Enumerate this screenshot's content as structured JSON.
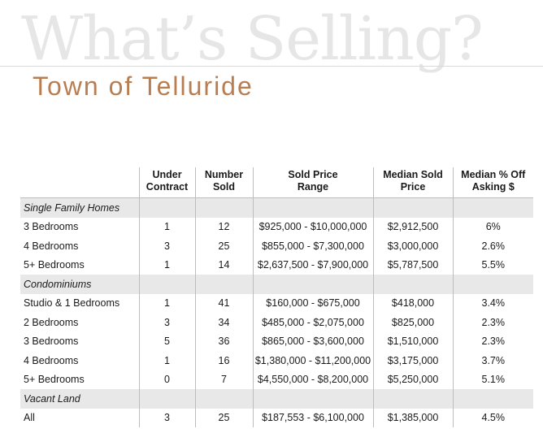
{
  "header": {
    "big_title": "What’s Selling?",
    "subtitle": "Town of Telluride"
  },
  "table": {
    "columns": [
      "",
      "Under\nContract",
      "Number\nSold",
      "Sold Price\nRange",
      "Median Sold\nPrice",
      "Median % Off\nAsking $"
    ],
    "rows": [
      {
        "section": true,
        "label": "Single Family Homes",
        "cells": [
          "",
          "",
          "",
          "",
          ""
        ]
      },
      {
        "section": false,
        "label": "3 Bedrooms",
        "cells": [
          "1",
          "12",
          "$925,000 - $10,000,000",
          "$2,912,500",
          "6%"
        ]
      },
      {
        "section": false,
        "label": "4 Bedrooms",
        "cells": [
          "3",
          "25",
          "$855,000 - $7,300,000",
          "$3,000,000",
          "2.6%"
        ]
      },
      {
        "section": false,
        "label": "5+ Bedrooms",
        "cells": [
          "1",
          "14",
          "$2,637,500 - $7,900,000",
          "$5,787,500",
          "5.5%"
        ]
      },
      {
        "section": true,
        "label": "Condominiums",
        "cells": [
          "",
          "",
          "",
          "",
          ""
        ]
      },
      {
        "section": false,
        "label": "Studio & 1 Bedrooms",
        "cells": [
          "1",
          "41",
          "$160,000 - $675,000",
          "$418,000",
          "3.4%"
        ]
      },
      {
        "section": false,
        "label": "2 Bedrooms",
        "cells": [
          "3",
          "34",
          "$485,000 - $2,075,000",
          "$825,000",
          "2.3%"
        ]
      },
      {
        "section": false,
        "label": "3 Bedrooms",
        "cells": [
          "5",
          "36",
          "$865,000 - $3,600,000",
          "$1,510,000",
          "2.3%"
        ]
      },
      {
        "section": false,
        "label": "4 Bedrooms",
        "cells": [
          "1",
          "16",
          "$1,380,000 - $11,200,000",
          "$3,175,000",
          "3.7%"
        ]
      },
      {
        "section": false,
        "label": "5+ Bedrooms",
        "cells": [
          "0",
          "7",
          "$4,550,000 - $8,200,000",
          "$5,250,000",
          "5.1%"
        ]
      },
      {
        "section": true,
        "label": "Vacant Land",
        "cells": [
          "",
          "",
          "",
          "",
          ""
        ]
      },
      {
        "section": false,
        "label": "All",
        "cells": [
          "3",
          "25",
          "$187,553 - $6,100,000",
          "$1,385,000",
          "4.5%"
        ]
      }
    ]
  }
}
